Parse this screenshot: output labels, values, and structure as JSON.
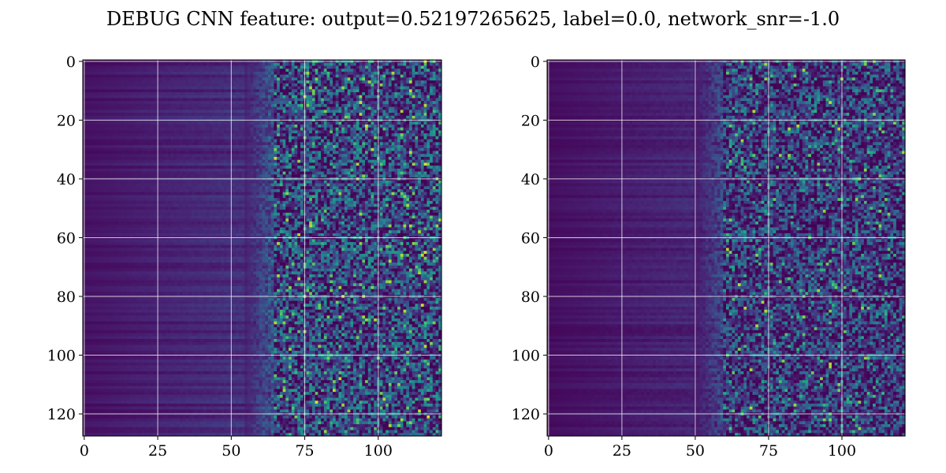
{
  "figure": {
    "title": "DEBUG CNN feature: output=0.52197265625, label=0.0, network_snr=-1.0"
  },
  "chart_data": [
    {
      "type": "heatmap",
      "title": "",
      "xlabel": "",
      "ylabel": "",
      "rows": 128,
      "cols": 122,
      "xlim": [
        -0.5,
        121.5
      ],
      "ylim": [
        127.5,
        -0.5
      ],
      "y_inverted": true,
      "colormap": "viridis",
      "grid": true,
      "x_ticks": [
        0,
        25,
        50,
        75,
        100
      ],
      "x_tick_labels": [
        "0",
        "25",
        "50",
        "75",
        "100"
      ],
      "y_ticks": [
        0,
        20,
        40,
        60,
        80,
        100,
        120
      ],
      "y_tick_labels": [
        "0",
        "20",
        "40",
        "60",
        "80",
        "100",
        "120"
      ],
      "structure": {
        "smooth_region_end_col": 55,
        "noisy_region_start_col": 65,
        "background_level": 0.1,
        "noise_mean_level": 0.25,
        "hot_spot_level": 0.95
      }
    },
    {
      "type": "heatmap",
      "title": "",
      "xlabel": "",
      "ylabel": "",
      "rows": 128,
      "cols": 122,
      "xlim": [
        -0.5,
        121.5
      ],
      "ylim": [
        127.5,
        -0.5
      ],
      "y_inverted": true,
      "colormap": "viridis",
      "grid": true,
      "x_ticks": [
        0,
        25,
        50,
        75,
        100
      ],
      "x_tick_labels": [
        "0",
        "25",
        "50",
        "75",
        "100"
      ],
      "y_ticks": [
        0,
        20,
        40,
        60,
        80,
        100,
        120
      ],
      "y_tick_labels": [
        "0",
        "20",
        "40",
        "60",
        "80",
        "100",
        "120"
      ],
      "structure": {
        "smooth_region_end_col": 50,
        "noisy_region_start_col": 60,
        "background_level": 0.08,
        "noise_mean_level": 0.2,
        "hot_spot_level": 0.9
      }
    }
  ],
  "colors": {
    "viridis_low": "#440154",
    "viridis_mid": "#21918c",
    "viridis_high": "#fde725",
    "grid": "#ffffff",
    "axis": "#000000",
    "background": "#ffffff"
  }
}
